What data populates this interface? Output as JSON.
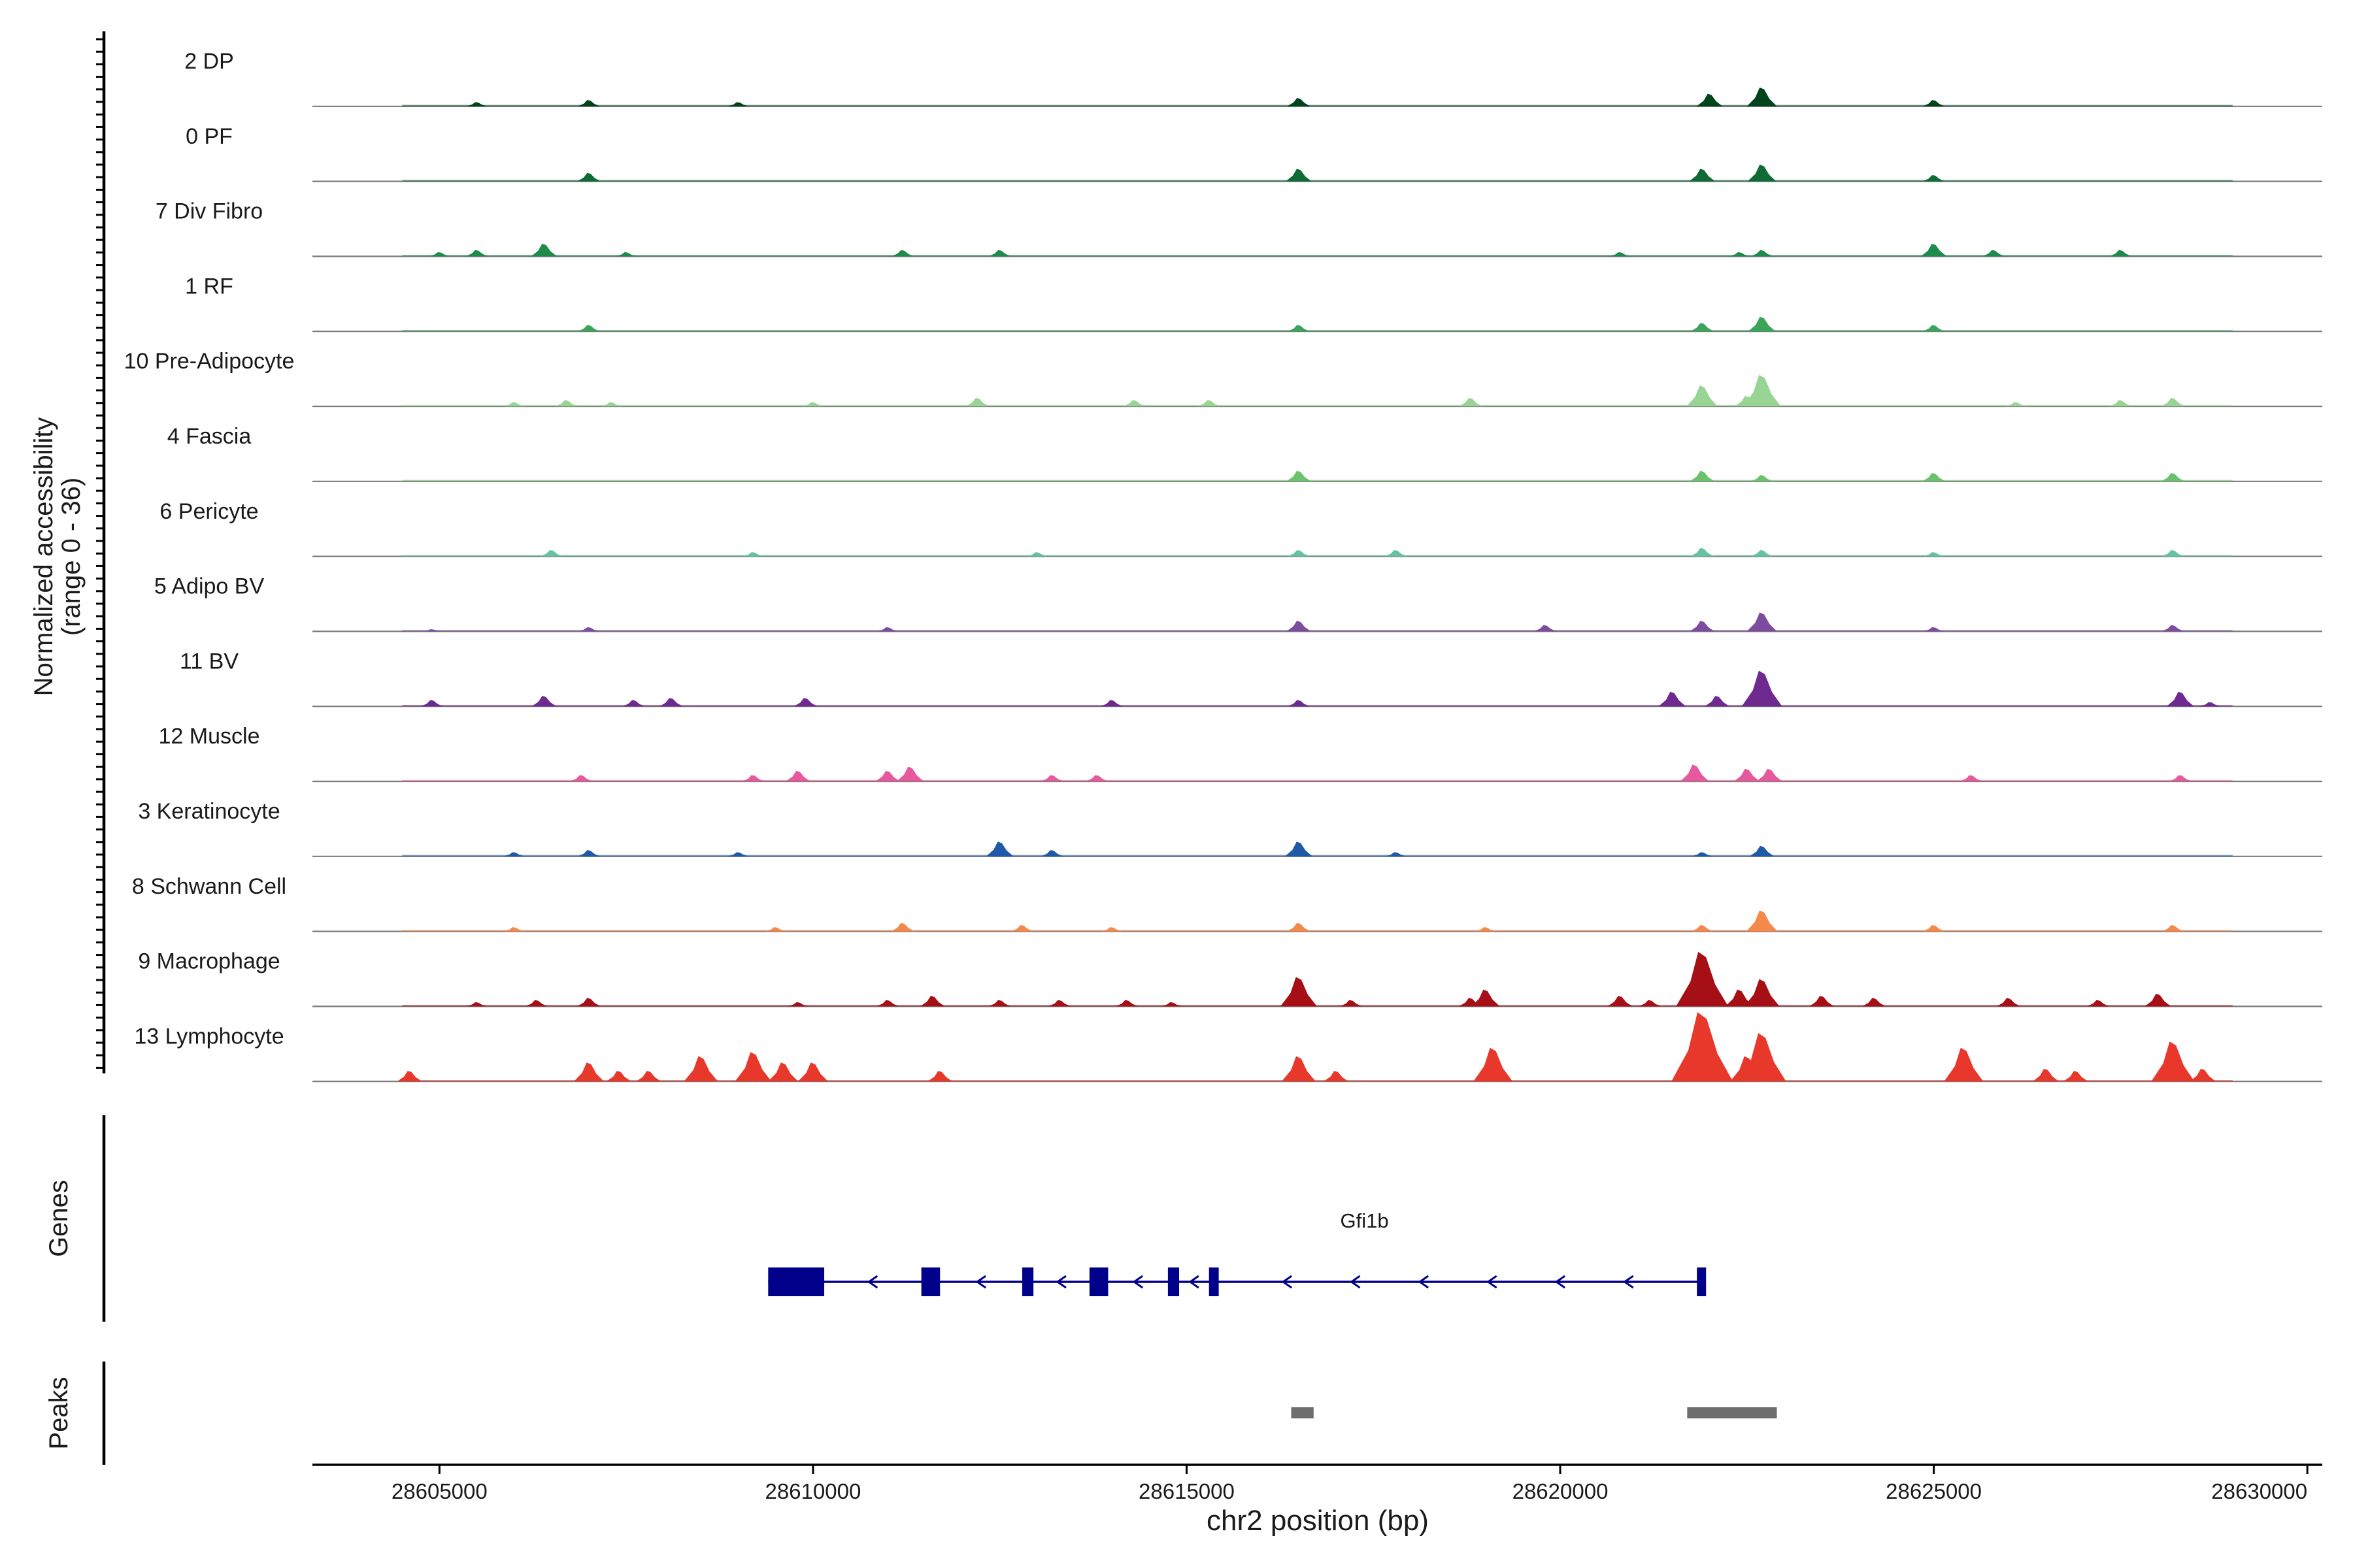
{
  "chart_data": {
    "type": "area",
    "title": "",
    "ylabel_line1": "Normalized accessibility",
    "ylabel_line2": "(range 0 - 36)",
    "ylim": [
      0,
      36
    ],
    "xlabel": "chr2 position (bp)",
    "xlim": [
      28603300,
      28630200
    ],
    "xticks": [
      28605000,
      28610000,
      28615000,
      28620000,
      28625000,
      28630000
    ],
    "xtick_labels": [
      "28605000",
      "28610000",
      "28615000",
      "28620000",
      "28625000",
      "28630000"
    ],
    "genes_label": "Genes",
    "peaks_label": "Peaks",
    "tracks": [
      {
        "name": "2 DP",
        "color": "#00441b",
        "peaks": [
          [
            28605500,
            0.2
          ],
          [
            28607000,
            0.3
          ],
          [
            28609000,
            0.2
          ],
          [
            28616500,
            0.4
          ],
          [
            28622000,
            0.6
          ],
          [
            28622700,
            0.9
          ],
          [
            28625000,
            0.3
          ]
        ]
      },
      {
        "name": "0 PF",
        "color": "#0f6b35",
        "peaks": [
          [
            28607000,
            0.4
          ],
          [
            28616500,
            0.6
          ],
          [
            28621900,
            0.6
          ],
          [
            28622700,
            0.8
          ],
          [
            28625000,
            0.3
          ]
        ]
      },
      {
        "name": "7 Div Fibro",
        "color": "#1e8a4b",
        "peaks": [
          [
            28605000,
            0.2
          ],
          [
            28605500,
            0.3
          ],
          [
            28606400,
            0.6
          ],
          [
            28607500,
            0.2
          ],
          [
            28611200,
            0.3
          ],
          [
            28612500,
            0.3
          ],
          [
            28620800,
            0.2
          ],
          [
            28622400,
            0.2
          ],
          [
            28622700,
            0.3
          ],
          [
            28625000,
            0.6
          ],
          [
            28625800,
            0.3
          ],
          [
            28627500,
            0.3
          ]
        ]
      },
      {
        "name": "1 RF",
        "color": "#3aa458",
        "peaks": [
          [
            28607000,
            0.3
          ],
          [
            28616500,
            0.3
          ],
          [
            28621900,
            0.4
          ],
          [
            28622700,
            0.7
          ],
          [
            28625000,
            0.3
          ]
        ]
      },
      {
        "name": "10 Pre-Adipocyte",
        "color": "#98d594",
        "peaks": [
          [
            28606000,
            0.2
          ],
          [
            28606700,
            0.3
          ],
          [
            28607300,
            0.2
          ],
          [
            28610000,
            0.2
          ],
          [
            28612200,
            0.4
          ],
          [
            28614300,
            0.3
          ],
          [
            28615300,
            0.3
          ],
          [
            28618800,
            0.4
          ],
          [
            28621900,
            1.0
          ],
          [
            28622500,
            0.5
          ],
          [
            28622700,
            1.5
          ],
          [
            28626100,
            0.2
          ],
          [
            28627500,
            0.3
          ],
          [
            28628200,
            0.4
          ]
        ]
      },
      {
        "name": "4 Fascia",
        "color": "#6cc26c",
        "peaks": [
          [
            28616500,
            0.5
          ],
          [
            28621900,
            0.5
          ],
          [
            28622700,
            0.3
          ],
          [
            28625000,
            0.4
          ],
          [
            28628200,
            0.4
          ]
        ]
      },
      {
        "name": "6 Pericyte",
        "color": "#66c2a4",
        "peaks": [
          [
            28606500,
            0.3
          ],
          [
            28609200,
            0.2
          ],
          [
            28613000,
            0.2
          ],
          [
            28616500,
            0.3
          ],
          [
            28617800,
            0.3
          ],
          [
            28621900,
            0.4
          ],
          [
            28622700,
            0.3
          ],
          [
            28625000,
            0.2
          ],
          [
            28628200,
            0.3
          ]
        ]
      },
      {
        "name": "5 Adipo BV",
        "color": "#7e4c9e",
        "peaks": [
          [
            28604900,
            0.1
          ],
          [
            28607000,
            0.2
          ],
          [
            28611000,
            0.2
          ],
          [
            28616500,
            0.5
          ],
          [
            28619800,
            0.3
          ],
          [
            28621900,
            0.5
          ],
          [
            28622700,
            0.9
          ],
          [
            28625000,
            0.2
          ],
          [
            28628200,
            0.3
          ]
        ]
      },
      {
        "name": "11 BV",
        "color": "#6e2a8e",
        "peaks": [
          [
            28604900,
            0.3
          ],
          [
            28606400,
            0.5
          ],
          [
            28607600,
            0.3
          ],
          [
            28608100,
            0.4
          ],
          [
            28609900,
            0.4
          ],
          [
            28614000,
            0.3
          ],
          [
            28616500,
            0.3
          ],
          [
            28621500,
            0.7
          ],
          [
            28622100,
            0.5
          ],
          [
            28622700,
            1.7
          ],
          [
            28628300,
            0.7
          ],
          [
            28628700,
            0.2
          ]
        ]
      },
      {
        "name": "12 Muscle",
        "color": "#e7589c",
        "peaks": [
          [
            28606900,
            0.3
          ],
          [
            28609200,
            0.3
          ],
          [
            28609800,
            0.5
          ],
          [
            28611000,
            0.5
          ],
          [
            28611300,
            0.7
          ],
          [
            28613200,
            0.3
          ],
          [
            28613800,
            0.3
          ],
          [
            28621800,
            0.8
          ],
          [
            28622500,
            0.6
          ],
          [
            28622800,
            0.6
          ],
          [
            28625500,
            0.3
          ],
          [
            28628300,
            0.3
          ]
        ]
      },
      {
        "name": "3 Keratinocyte",
        "color": "#1f5aa8",
        "peaks": [
          [
            28606000,
            0.2
          ],
          [
            28607000,
            0.3
          ],
          [
            28609000,
            0.2
          ],
          [
            28612500,
            0.7
          ],
          [
            28613200,
            0.3
          ],
          [
            28616500,
            0.7
          ],
          [
            28617800,
            0.2
          ],
          [
            28621900,
            0.2
          ],
          [
            28622700,
            0.5
          ]
        ]
      },
      {
        "name": "8 Schwann Cell",
        "color": "#f4894a",
        "peaks": [
          [
            28606000,
            0.2
          ],
          [
            28609500,
            0.2
          ],
          [
            28611200,
            0.4
          ],
          [
            28612800,
            0.3
          ],
          [
            28614000,
            0.2
          ],
          [
            28616500,
            0.4
          ],
          [
            28619000,
            0.2
          ],
          [
            28621900,
            0.3
          ],
          [
            28622700,
            1.0
          ],
          [
            28625000,
            0.3
          ],
          [
            28628200,
            0.3
          ]
        ]
      },
      {
        "name": "9 Macrophage",
        "color": "#a50f15",
        "peaks": [
          [
            28605500,
            0.2
          ],
          [
            28606300,
            0.3
          ],
          [
            28607000,
            0.4
          ],
          [
            28609800,
            0.2
          ],
          [
            28611000,
            0.3
          ],
          [
            28611600,
            0.5
          ],
          [
            28612500,
            0.3
          ],
          [
            28613300,
            0.3
          ],
          [
            28614200,
            0.3
          ],
          [
            28614800,
            0.2
          ],
          [
            28616500,
            1.4
          ],
          [
            28617200,
            0.3
          ],
          [
            28618800,
            0.4
          ],
          [
            28619000,
            0.8
          ],
          [
            28620800,
            0.5
          ],
          [
            28621200,
            0.3
          ],
          [
            28621900,
            2.6
          ],
          [
            28622400,
            0.8
          ],
          [
            28622700,
            1.3
          ],
          [
            28623500,
            0.5
          ],
          [
            28624200,
            0.4
          ],
          [
            28626000,
            0.4
          ],
          [
            28627200,
            0.3
          ],
          [
            28628000,
            0.6
          ]
        ]
      },
      {
        "name": "13 Lymphocyte",
        "color": "#e8382c",
        "peaks": [
          [
            28604600,
            0.5
          ],
          [
            28607000,
            0.9
          ],
          [
            28607400,
            0.5
          ],
          [
            28607800,
            0.5
          ],
          [
            28608500,
            1.2
          ],
          [
            28609200,
            1.4
          ],
          [
            28609600,
            0.9
          ],
          [
            28610000,
            0.9
          ],
          [
            28611700,
            0.5
          ],
          [
            28616500,
            1.2
          ],
          [
            28617000,
            0.5
          ],
          [
            28619100,
            1.6
          ],
          [
            28621900,
            3.3
          ],
          [
            28622500,
            1.2
          ],
          [
            28622700,
            2.3
          ],
          [
            28625400,
            1.6
          ],
          [
            28626500,
            0.6
          ],
          [
            28626900,
            0.5
          ],
          [
            28628200,
            1.9
          ],
          [
            28628600,
            0.6
          ]
        ]
      }
    ],
    "gene": {
      "name": "Gfi1b",
      "strand": "-",
      "start": 28609400,
      "end": 28621950,
      "exons": [
        [
          28609400,
          28610150
        ],
        [
          28611450,
          28611700
        ],
        [
          28612800,
          28612950
        ],
        [
          28613700,
          28613950
        ],
        [
          28614750,
          28614900
        ],
        [
          28615300,
          28615430
        ],
        [
          28621830,
          28621950
        ]
      ]
    },
    "peak_regions": [
      [
        28616400,
        28616700
      ],
      [
        28621700,
        28622900
      ]
    ]
  }
}
